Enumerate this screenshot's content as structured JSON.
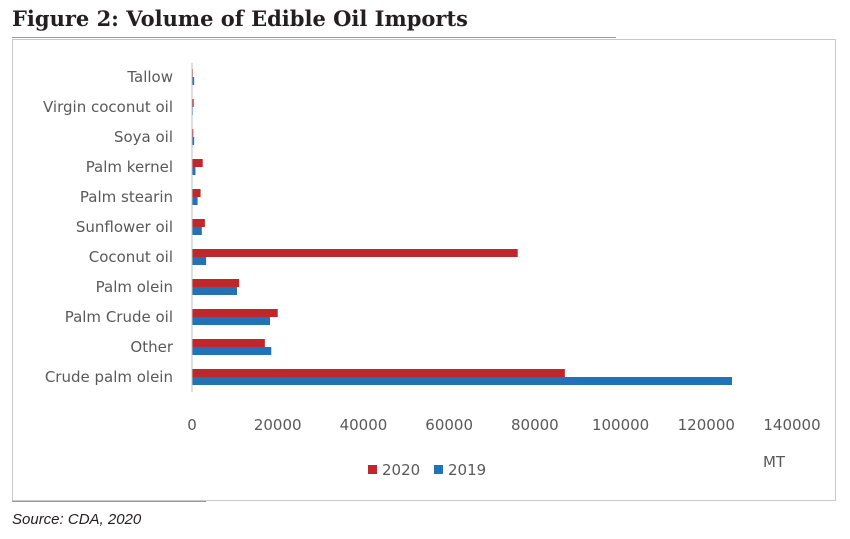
{
  "figure": {
    "title": "Figure 2: Volume of Edible Oil Imports",
    "source": "Source: CDA, 2020"
  },
  "chart_data": {
    "type": "bar",
    "orientation": "horizontal",
    "categories": [
      "Crude palm olein",
      "Other",
      "Palm Crude oil",
      "Palm olein",
      "Coconut oil",
      "Sunflower oil",
      "Palm stearin",
      "Palm kernel",
      "Soya oil",
      "Virgin coconut oil",
      "Tallow"
    ],
    "series": [
      {
        "name": "2020",
        "color": "#c0272d",
        "values": [
          87000,
          17000,
          20000,
          11000,
          76000,
          3000,
          2000,
          2500,
          300,
          400,
          200
        ]
      },
      {
        "name": "2019",
        "color": "#2272b6",
        "values": [
          126000,
          18500,
          18200,
          10500,
          3300,
          2300,
          1300,
          800,
          500,
          150,
          500
        ]
      }
    ],
    "xlim": [
      0,
      140000
    ],
    "xticks": [
      "0",
      "20000",
      "40000",
      "60000",
      "80000",
      "100000",
      "120000",
      "140000"
    ],
    "unit_label": "MT",
    "grid": false,
    "legend_position": "bottom"
  }
}
